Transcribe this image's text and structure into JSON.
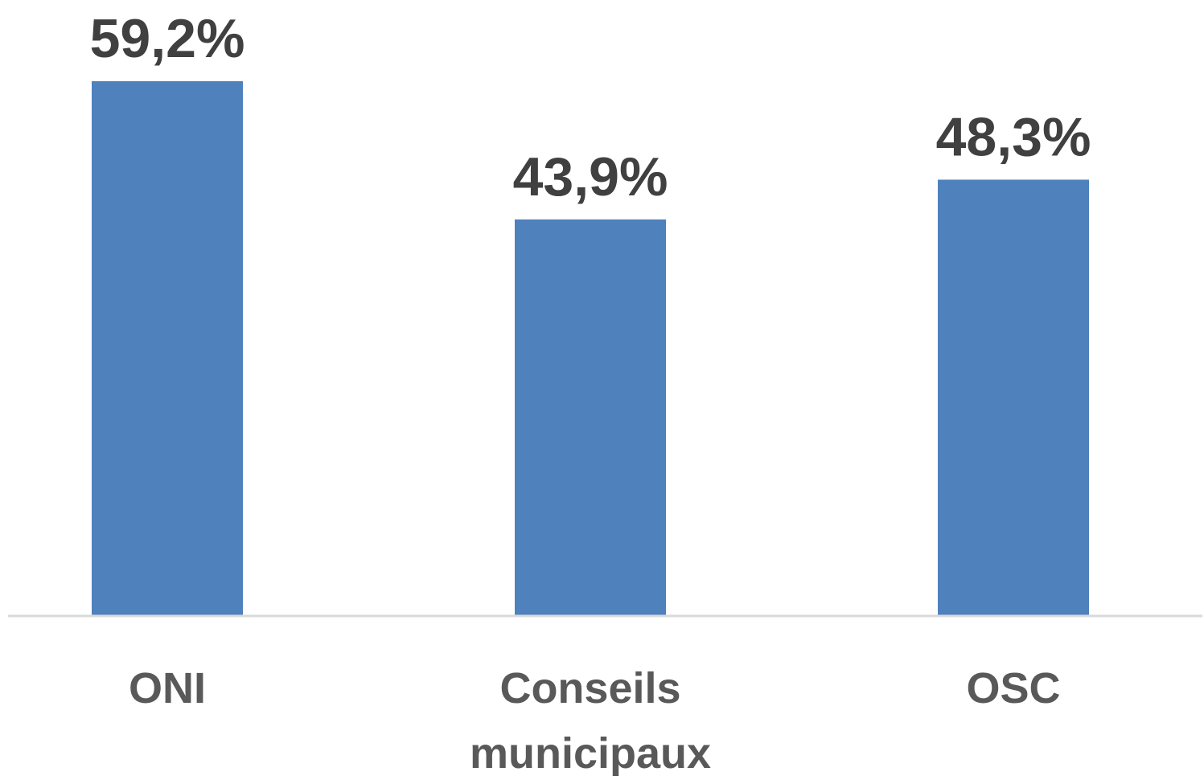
{
  "chart_data": {
    "type": "bar",
    "categories": [
      [
        "ONI"
      ],
      [
        "Conseils",
        "municipaux"
      ],
      [
        "OSC"
      ]
    ],
    "values": [
      59.2,
      43.9,
      48.3
    ],
    "value_labels": [
      "59,2%",
      "43,9%",
      "48,3%"
    ],
    "unit": "%",
    "ylim": [
      0,
      59.2
    ],
    "grid": false,
    "legend": "none",
    "y_axis_visible": false,
    "bar_color": "#4F81BD",
    "axis_color": "#D9D9D9",
    "data_label_color": "#404040",
    "category_label_color": "#595959"
  }
}
